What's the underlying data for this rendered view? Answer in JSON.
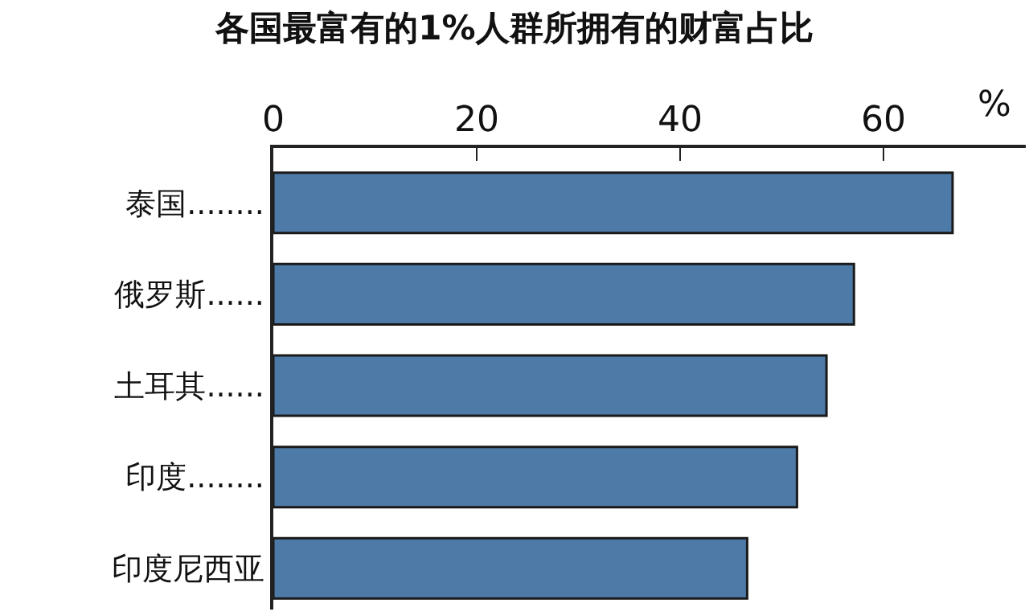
{
  "chart_data": {
    "type": "bar",
    "orientation": "horizontal",
    "title": "各国最富有的1%人群所拥有的财富占比",
    "xlabel": "%",
    "categories": [
      "泰国........",
      "俄罗斯......",
      "土耳其......",
      "印度........",
      "印度尼西亚"
    ],
    "values": [
      66.8,
      57.1,
      54.4,
      51.5,
      46.6
    ],
    "color": "#4d7aa6",
    "xlim": [
      0,
      74
    ],
    "xticks": [
      0,
      20,
      40,
      60
    ],
    "legend": false
  }
}
